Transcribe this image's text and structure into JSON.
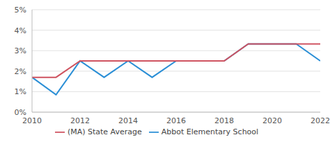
{
  "chart_data": {
    "type": "line",
    "x": [
      2010,
      2011,
      2012,
      2013,
      2014,
      2015,
      2016,
      2017,
      2018,
      2019,
      2020,
      2021,
      2022
    ],
    "series": [
      {
        "name": "Abbot Elementary School",
        "color": "#2b8fd6",
        "values": [
          1.7,
          0.85,
          2.5,
          1.7,
          2.5,
          1.7,
          2.5,
          2.5,
          2.5,
          3.33,
          3.33,
          3.33,
          2.5
        ]
      },
      {
        "name": "(MA) State Average",
        "color": "#cf5360",
        "values": [
          1.7,
          1.7,
          2.5,
          2.5,
          2.5,
          2.5,
          2.5,
          2.5,
          2.5,
          3.33,
          3.33,
          3.33,
          3.33
        ]
      }
    ],
    "xlim": [
      2010,
      2022
    ],
    "xticks": [
      2010,
      2012,
      2014,
      2016,
      2018,
      2020,
      2022
    ],
    "ylim": [
      0,
      5
    ],
    "yticks": [
      {
        "value": 0,
        "label": "0%"
      },
      {
        "value": 1,
        "label": "1%"
      },
      {
        "value": 2,
        "label": "2%"
      },
      {
        "value": 3,
        "label": "3%"
      },
      {
        "value": 4,
        "label": "4%"
      },
      {
        "value": 5,
        "label": "5%"
      }
    ],
    "grid": true,
    "legend": "bottom"
  }
}
